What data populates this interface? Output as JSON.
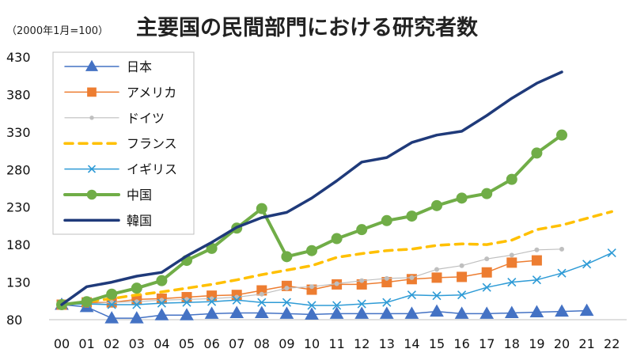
{
  "chart_data": {
    "type": "line",
    "title": "主要国の民間部門における研究者数",
    "unit_note": "（2000年1月=100）",
    "x": [
      "00",
      "01",
      "02",
      "03",
      "04",
      "05",
      "06",
      "07",
      "08",
      "09",
      "10",
      "11",
      "12",
      "13",
      "14",
      "15",
      "16",
      "17",
      "18",
      "19",
      "20",
      "21",
      "22"
    ],
    "ylim": [
      80,
      430
    ],
    "yticks": [
      80,
      130,
      180,
      230,
      280,
      330,
      380,
      430
    ],
    "grid": false,
    "legend_position": "top-left",
    "series": [
      {
        "name": "日本",
        "color": "#4472C4",
        "marker": "triangle",
        "values": [
          100,
          97,
          82,
          82,
          86,
          86,
          88,
          89,
          89,
          88,
          87,
          88,
          88,
          88,
          88,
          91,
          88,
          88,
          89,
          90,
          91,
          92,
          null
        ]
      },
      {
        "name": "アメリカ",
        "color": "#ED7D31",
        "marker": "square",
        "values": [
          100,
          103,
          103,
          107,
          108,
          110,
          112,
          113,
          119,
          125,
          120,
          127,
          127,
          130,
          134,
          136,
          137,
          143,
          156,
          159,
          null,
          null,
          null
        ]
      },
      {
        "name": "ドイツ",
        "color": "#BFBFBF",
        "marker": "dot",
        "values": [
          100,
          101,
          103,
          104,
          106,
          107,
          108,
          110,
          114,
          122,
          124,
          128,
          132,
          135,
          136,
          147,
          152,
          161,
          166,
          173,
          174,
          null,
          null
        ]
      },
      {
        "name": "フランス",
        "color": "#FFC000",
        "marker": "dash",
        "values": [
          100,
          104,
          108,
          113,
          117,
          122,
          127,
          133,
          140,
          146,
          152,
          163,
          168,
          172,
          174,
          179,
          181,
          180,
          186,
          200,
          206,
          215,
          224
        ]
      },
      {
        "name": "イギリス",
        "color": "#2E9BD6",
        "marker": "x",
        "values": [
          100,
          101,
          100,
          100,
          102,
          103,
          104,
          106,
          103,
          103,
          99,
          99,
          101,
          103,
          113,
          112,
          113,
          123,
          130,
          133,
          142,
          154,
          169
        ]
      },
      {
        "name": "中国",
        "color": "#70AD47",
        "marker": "circle",
        "values": [
          100,
          104,
          114,
          122,
          132,
          159,
          175,
          202,
          228,
          164,
          172,
          188,
          200,
          212,
          218,
          232,
          242,
          248,
          267,
          302,
          326,
          null,
          null
        ]
      },
      {
        "name": "韓国",
        "color": "#1F3A7A",
        "marker": "none",
        "values": [
          100,
          124,
          130,
          138,
          143,
          165,
          183,
          203,
          216,
          223,
          242,
          265,
          290,
          296,
          316,
          326,
          331,
          352,
          375,
          395,
          410,
          null,
          null
        ]
      }
    ]
  }
}
